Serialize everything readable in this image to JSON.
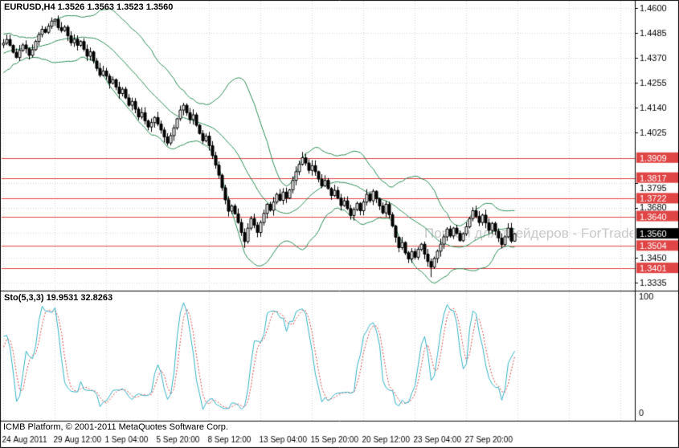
{
  "window": {
    "symbol_header": "EURUSD,H4 1.3526 1.3563 1.3523 1.3560",
    "sto_header": "Sto(5,3,3) 19.9531 32.8263",
    "copyright": "ICMB Platform, © 2001-2011 MetaQuotes Software Corp.",
    "watermark": "Портал для трейдеров - ForTrade"
  },
  "colors": {
    "background": "#ffffff",
    "border": "#000000",
    "grid": "#d6d6d6",
    "text": "#000000",
    "candle": "#000000",
    "bull": "#ffffff",
    "bear": "#000000",
    "bollinger": "#2e8b57",
    "level": "#e04545",
    "price_label_bg": "#000000",
    "price_label_text": "#ffffff",
    "sto_main": "#35b1c4",
    "sto_signal": "#d94c4c"
  },
  "chart_data": {
    "type": "candlestick",
    "symbol": "EURUSD",
    "timeframe": "H4",
    "ohlc_display": {
      "open": "1.3526",
      "high": "1.3563",
      "low": "1.3523",
      "close": "1.3560"
    },
    "price_axis": {
      "min": 1.3335,
      "max": 1.46,
      "step": 0.0115,
      "labels": [
        "1.4600",
        "1.4485",
        "1.4370",
        "1.4255",
        "1.4140",
        "1.4025",
        "1.3795",
        "1.3680",
        "1.3450",
        "1.3335"
      ]
    },
    "current_price": "1.3560",
    "red_levels": [
      "1.3909",
      "1.3817",
      "1.3722",
      "1.3640",
      "1.3504",
      "1.3401"
    ],
    "time_labels": [
      {
        "i": 0,
        "t": "24 Aug 2011"
      },
      {
        "i": 16,
        "t": "29 Aug 12:00"
      },
      {
        "i": 32,
        "t": "1 Sep 04:00"
      },
      {
        "i": 48,
        "t": "5 Sep 20:00"
      },
      {
        "i": 64,
        "t": "8 Sep 12:00"
      },
      {
        "i": 80,
        "t": "13 Sep 04:00"
      },
      {
        "i": 96,
        "t": "15 Sep 20:00"
      },
      {
        "i": 112,
        "t": "20 Sep 12:00"
      },
      {
        "i": 128,
        "t": "23 Sep 04:00"
      },
      {
        "i": 144,
        "t": "27 Sep 20:00"
      }
    ],
    "pre_closes_warmup": [
      1.431,
      1.4345,
      1.4298,
      1.436,
      1.433,
      1.4382,
      1.4356,
      1.4402,
      1.4378,
      1.442,
      1.4396,
      1.4438,
      1.441,
      1.4452,
      1.4422,
      1.439,
      1.4418,
      1.4446,
      1.443
    ],
    "closes": [
      1.4438,
      1.4455,
      1.4428,
      1.4396,
      1.4372,
      1.4405,
      1.443,
      1.4412,
      1.4382,
      1.4408,
      1.4446,
      1.4478,
      1.4502,
      1.4488,
      1.4516,
      1.454,
      1.4548,
      1.451,
      1.4496,
      1.4512,
      1.4472,
      1.444,
      1.4456,
      1.4428,
      1.4446,
      1.441,
      1.4378,
      1.4398,
      1.4356,
      1.4322,
      1.429,
      1.431,
      1.4286,
      1.4254,
      1.427,
      1.4236,
      1.4206,
      1.4226,
      1.4186,
      1.4152,
      1.417,
      1.4134,
      1.4098,
      1.4118,
      1.408,
      1.4052,
      1.4072,
      1.4096,
      1.4066,
      1.4038,
      1.4006,
      1.3978,
      1.4012,
      1.4048,
      1.409,
      1.413,
      1.4152,
      1.4118,
      1.4086,
      1.4108,
      1.406,
      1.4022,
      1.3988,
      1.401,
      1.3966,
      1.392,
      1.3876,
      1.383,
      1.3772,
      1.3716,
      1.3664,
      1.3688,
      1.3652,
      1.3612,
      1.3566,
      1.3524,
      1.3586,
      1.363,
      1.36,
      1.3566,
      1.3612,
      1.3654,
      1.3696,
      1.3668,
      1.3706,
      1.3742,
      1.3714,
      1.3752,
      1.3724,
      1.3762,
      1.3806,
      1.3846,
      1.388,
      1.391,
      1.3886,
      1.3852,
      1.3874,
      1.3846,
      1.3812,
      1.378,
      1.3806,
      1.3768,
      1.3736,
      1.376,
      1.3724,
      1.369,
      1.3712,
      1.3676,
      1.3644,
      1.3672,
      1.37,
      1.3666,
      1.3706,
      1.3742,
      1.3712,
      1.3756,
      1.3722,
      1.3688,
      1.3656,
      1.3696,
      1.3648,
      1.3596,
      1.3544,
      1.3496,
      1.352,
      1.3472,
      1.3444,
      1.3478,
      1.3452,
      1.3488,
      1.3512,
      1.3466,
      1.3432,
      1.3406,
      1.3446,
      1.348,
      1.3512,
      1.3546,
      1.3582,
      1.355,
      1.3586,
      1.3562,
      1.3528,
      1.356,
      1.3592,
      1.363,
      1.3666,
      1.364,
      1.3612,
      1.3646,
      1.361,
      1.3576,
      1.3608,
      1.3572,
      1.354,
      1.351,
      1.3546,
      1.3586,
      1.3526,
      1.356
    ],
    "wick_overrides": {
      "16": {
        "h": 1.4552
      },
      "75": {
        "l": 1.3495
      },
      "93": {
        "h": 1.3937
      },
      "133": {
        "l": 1.336
      },
      "159": {
        "h": 1.3563,
        "l": 1.3523
      }
    },
    "bollinger": {
      "period": 20,
      "deviation": 2
    },
    "stochastic": {
      "k": 5,
      "d": 3,
      "slowing": 3,
      "main_value": "19.9531",
      "signal_value": "32.8263",
      "scale_top": "100",
      "scale_bottom": "0"
    }
  }
}
